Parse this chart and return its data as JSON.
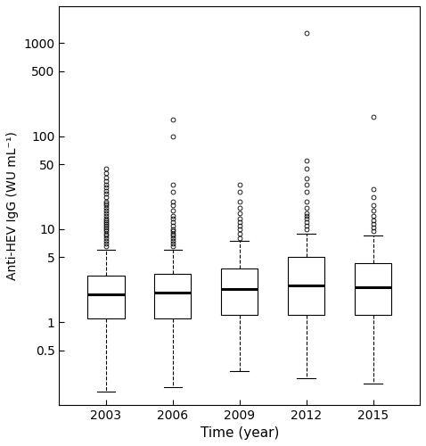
{
  "years": [
    2003,
    2006,
    2009,
    2012,
    2015
  ],
  "positions": [
    1,
    2,
    3,
    4,
    5
  ],
  "box_data": {
    "2003": {
      "q1": 1.1,
      "median": 2.0,
      "q3": 3.2,
      "whisker_low": 0.18,
      "whisker_high": 6.0,
      "outliers": [
        6.5,
        7.0,
        7.5,
        8.0,
        8.5,
        9.0,
        9.5,
        10.0,
        10.5,
        11.0,
        11.5,
        12.0,
        12.5,
        13.0,
        14.0,
        15.0,
        16.0,
        17.0,
        18.0,
        19.0,
        20.0,
        22.0,
        24.0,
        26.0,
        28.0,
        30.0,
        33.0,
        36.0,
        40.0,
        45.0
      ]
    },
    "2006": {
      "q1": 1.1,
      "median": 2.1,
      "q3": 3.3,
      "whisker_low": 0.2,
      "whisker_high": 6.0,
      "outliers": [
        6.5,
        7.0,
        7.5,
        8.0,
        8.5,
        9.0,
        9.5,
        10.0,
        11.0,
        12.0,
        13.0,
        14.0,
        16.0,
        18.0,
        20.0,
        25.0,
        30.0,
        100.0,
        150.0
      ]
    },
    "2009": {
      "q1": 1.2,
      "median": 2.3,
      "q3": 3.8,
      "whisker_low": 0.3,
      "whisker_high": 7.5,
      "outliers": [
        8.0,
        9.0,
        10.0,
        11.0,
        12.0,
        13.0,
        15.0,
        17.0,
        20.0,
        25.0,
        30.0
      ]
    },
    "2012": {
      "q1": 1.2,
      "median": 2.5,
      "q3": 5.0,
      "whisker_low": 0.25,
      "whisker_high": 9.0,
      "outliers": [
        10.0,
        11.0,
        12.0,
        13.0,
        14.0,
        15.0,
        17.0,
        20.0,
        25.0,
        30.0,
        35.0,
        45.0,
        55.0,
        1300.0
      ]
    },
    "2015": {
      "q1": 1.2,
      "median": 2.4,
      "q3": 4.3,
      "whisker_low": 0.22,
      "whisker_high": 8.5,
      "outliers": [
        9.5,
        10.5,
        11.5,
        12.5,
        14.0,
        16.0,
        18.0,
        22.0,
        27.0,
        160.0
      ]
    }
  },
  "ylabel": "Anti-HEV IgG (WU mL⁻¹)",
  "xlabel": "Time (year)",
  "yticks": [
    0.5,
    1,
    5,
    10,
    50,
    100,
    500,
    1000
  ],
  "ytick_labels": [
    "0.5",
    "1",
    "5",
    "10",
    "50",
    "100",
    "500",
    "1000"
  ],
  "ylim_log": [
    0.13,
    2500
  ],
  "box_width": 0.55,
  "flier_ms": 3.5,
  "figsize": [
    4.78,
    5.0
  ],
  "dpi": 100
}
